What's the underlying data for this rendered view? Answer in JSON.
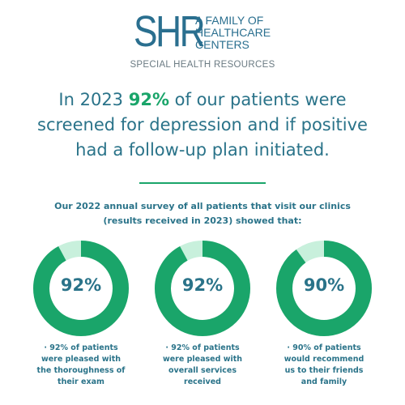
{
  "logo": {
    "mark": "SHR",
    "tagline_lines": [
      "A FAMILY OF",
      "HEALTHCARE",
      "CENTERS"
    ],
    "subtitle": "SPECIAL HEALTH RESOURCES"
  },
  "headline": {
    "prefix": "In 2023 ",
    "highlight": "92%",
    "suffix": " of our patients were screened for depression and if positive had a follow-up plan initiated."
  },
  "survey": {
    "line1": "Our 2022 annual survey of all patients that visit our clinics",
    "line2": "(results received in 2023) showed that:"
  },
  "colors": {
    "brand_teal": "#2a7389",
    "accent_green": "#1aa56a",
    "ring_track": "#c8f0dc"
  },
  "stats": [
    {
      "percent": 92,
      "label": "92%",
      "caption_lines": [
        "· 92% of patients",
        "were pleased with",
        "the thoroughness of",
        "their exam"
      ]
    },
    {
      "percent": 92,
      "label": "92%",
      "caption_lines": [
        "· 92% of patients",
        "were pleased with",
        "overall services",
        "received"
      ]
    },
    {
      "percent": 90,
      "label": "90%",
      "caption_lines": [
        "· 90% of patients",
        "would recommend",
        "us to their friends",
        "and family"
      ]
    }
  ]
}
